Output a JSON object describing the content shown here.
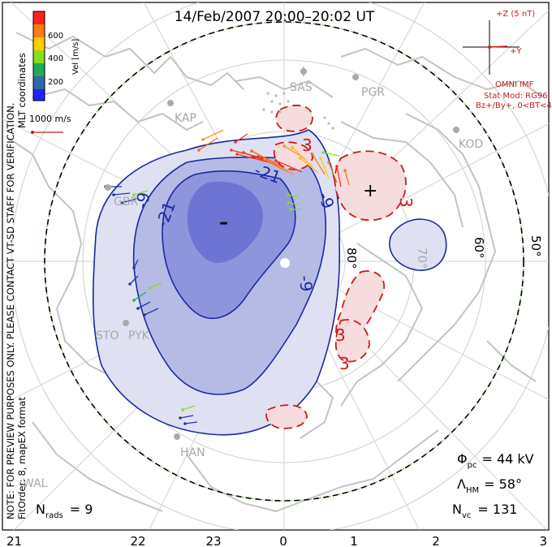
{
  "title": "14/Feb/2007 20:00–20:02 UT",
  "colorbar": {
    "label": "Vel [m/s]",
    "ticks": [
      "600",
      "400",
      "200"
    ],
    "colors": [
      "#ff2020",
      "#ff7a10",
      "#ffcc00",
      "#88dd22",
      "#22aa55",
      "#3366aa",
      "#2222ff"
    ]
  },
  "mlt_label": "MLT coordinates",
  "verification_note": "NOTE: FOR PREVIEW PURPOSES ONLY. PLEASE CONTACT VT-SD STAFF FOR VERIFICATION.",
  "fit_order_note": "FitOrder: 8, mapEX format",
  "scale_vector": "1000 m/s",
  "imf": {
    "z_label": "+Z (5 nT)",
    "y_label": "+Y",
    "source": "OMNI IMF",
    "model": "Stat Mod: RG96",
    "condition": "Bz+/By+, 0<BT<4"
  },
  "stations": [
    "SAS",
    "PGR",
    "KAP",
    "KOD",
    "GBR",
    "STO",
    "PYK",
    "HAN",
    "WAL"
  ],
  "latitude_labels": [
    "80°",
    "70°",
    "60°",
    "50°"
  ],
  "contour_labels_neg": [
    "-21",
    "-21",
    "-9",
    "-9",
    "-9"
  ],
  "contour_labels_pos": [
    "3",
    "3",
    "3",
    "3"
  ],
  "extremes": {
    "min_symbol": "–",
    "max_symbol": "+"
  },
  "stats": {
    "phi_label": "Φ",
    "phi_sub": "pc",
    "phi_value": "= 44 kV",
    "lambda_label": "Λ",
    "lambda_sub": "HM",
    "lambda_value": "= 58°",
    "nvc_label": "N",
    "nvc_sub": "vc",
    "nvc_value": "= 131",
    "nrads_label": "N",
    "nrads_sub": "rads",
    "nrads_value": "= 9"
  },
  "mlt_ticks": [
    "21",
    "22",
    "23",
    "0",
    "1",
    "2",
    "3"
  ]
}
